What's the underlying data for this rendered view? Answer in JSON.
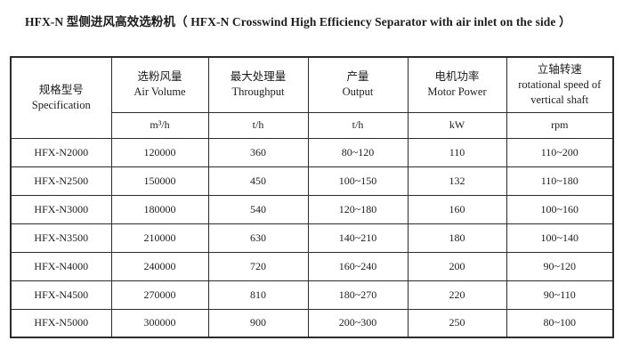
{
  "page": {
    "title": "HFX-N 型侧进风高效选粉机（ HFX-N Crosswind High Efficiency Separator with air inlet on the side ）"
  },
  "table": {
    "columns": [
      {
        "zh": "规格型号",
        "en": "Specification",
        "unit": ""
      },
      {
        "zh": "选粉风量",
        "en": "Air Volume",
        "unit": "m³/h"
      },
      {
        "zh": "最大处理量",
        "en": "Throughput",
        "unit": "t/h"
      },
      {
        "zh": "产量",
        "en": "Output",
        "unit": "t/h"
      },
      {
        "zh": "电机功率",
        "en": "Motor Power",
        "unit": "kW"
      },
      {
        "zh": "立轴转速",
        "en": "rotational speed of vertical shaft",
        "unit": "rpm"
      }
    ],
    "rows": [
      [
        "HFX-N2000",
        "120000",
        "360",
        "80~120",
        "110",
        "110~200"
      ],
      [
        "HFX-N2500",
        "150000",
        "450",
        "100~150",
        "132",
        "110~180"
      ],
      [
        "HFX-N3000",
        "180000",
        "540",
        "120~180",
        "160",
        "100~160"
      ],
      [
        "HFX-N3500",
        "210000",
        "630",
        "140~210",
        "180",
        "100~140"
      ],
      [
        "HFX-N4000",
        "240000",
        "720",
        "160~240",
        "200",
        "90~120"
      ],
      [
        "HFX-N4500",
        "270000",
        "810",
        "180~270",
        "220",
        "90~110"
      ],
      [
        "HFX-N5000",
        "300000",
        "900",
        "200~300",
        "250",
        "80~100"
      ]
    ]
  }
}
